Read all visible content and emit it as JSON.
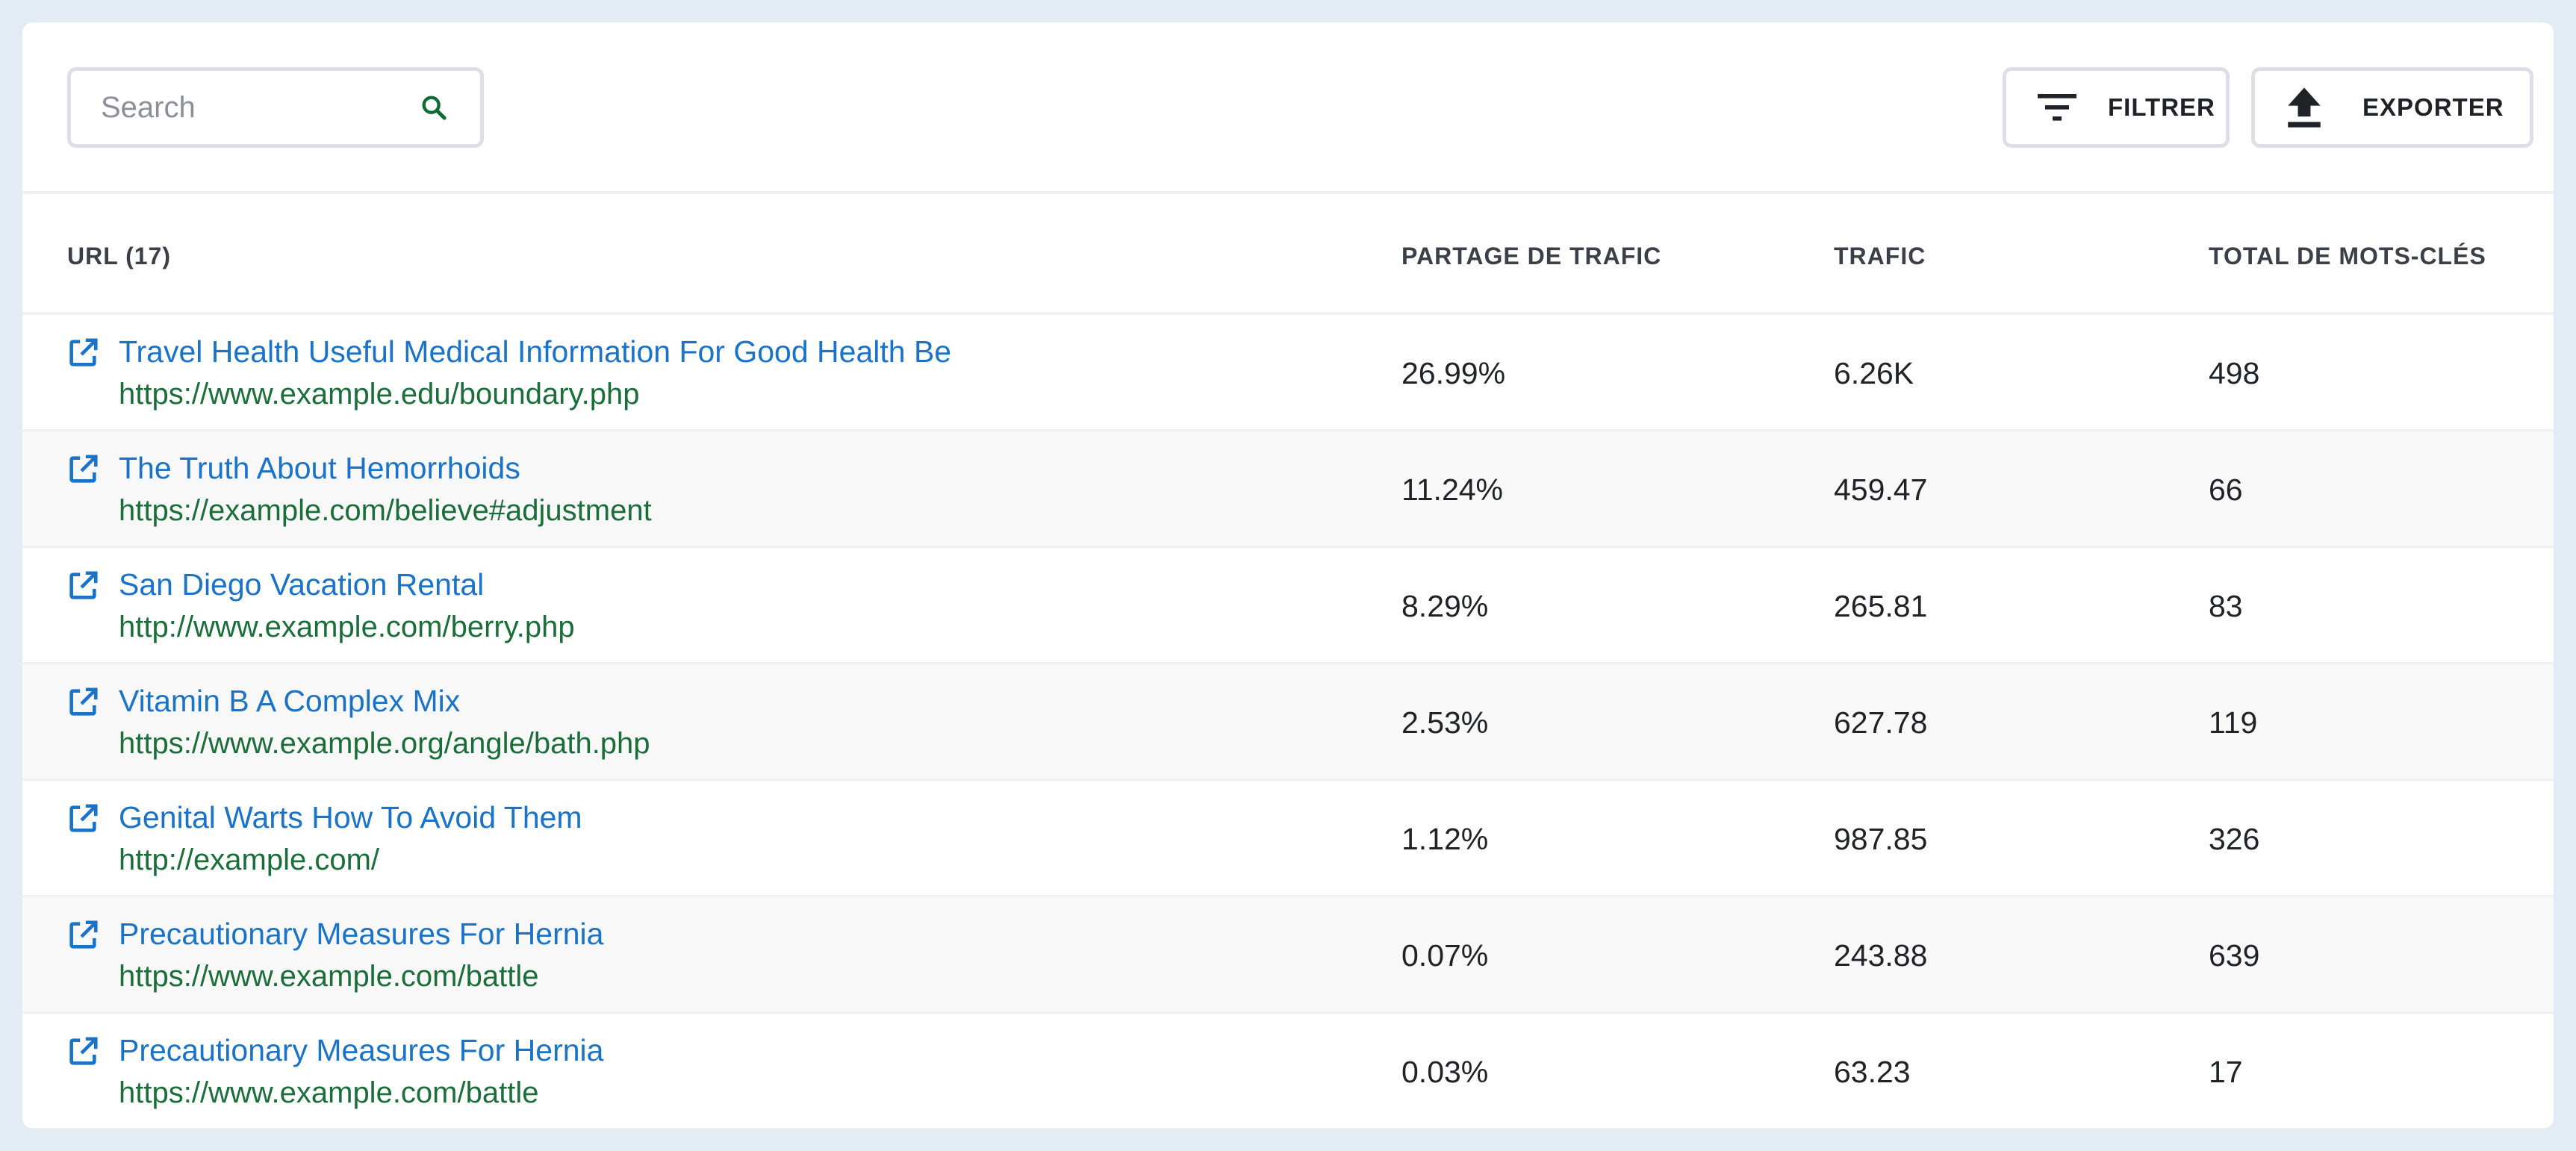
{
  "toolbar": {
    "search_placeholder": "Search",
    "filter_label": "FILTRER",
    "export_label": "EXPORTER"
  },
  "columns": {
    "url": "URL (17)",
    "share": "PARTAGE DE TRAFIC",
    "traffic": "TRAFIC",
    "keywords": "TOTAL DE MOTS-CLÉS"
  },
  "rows": [
    {
      "title": "Travel Health Useful Medical Information For Good Health Be",
      "url": "https://www.example.edu/boundary.php",
      "share": "26.99%",
      "traffic": "6.26K",
      "keywords": "498"
    },
    {
      "title": "The Truth About Hemorrhoids",
      "url": "https://example.com/believe#adjustment",
      "share": "11.24%",
      "traffic": "459.47",
      "keywords": "66"
    },
    {
      "title": "San Diego Vacation Rental",
      "url": "http://www.example.com/berry.php",
      "share": "8.29%",
      "traffic": "265.81",
      "keywords": "83"
    },
    {
      "title": "Vitamin B A Complex Mix",
      "url": "https://www.example.org/angle/bath.php",
      "share": "2.53%",
      "traffic": "627.78",
      "keywords": "119"
    },
    {
      "title": "Genital Warts How To Avoid Them",
      "url": "http://example.com/",
      "share": "1.12%",
      "traffic": "987.85",
      "keywords": "326"
    },
    {
      "title": "Precautionary Measures For Hernia",
      "url": "https://www.example.com/battle",
      "share": "0.07%",
      "traffic": "243.88",
      "keywords": "639"
    },
    {
      "title": "Precautionary Measures For Hernia",
      "url": "https://www.example.com/battle",
      "share": "0.03%",
      "traffic": "63.23",
      "keywords": "17"
    }
  ],
  "icons": {
    "search": "search-icon",
    "filter": "filter-icon",
    "export": "upload-icon",
    "external": "external-link-icon"
  },
  "colors": {
    "link": "#1a73c8",
    "url": "#1b6e3a",
    "search_icon": "#0f6b35"
  }
}
